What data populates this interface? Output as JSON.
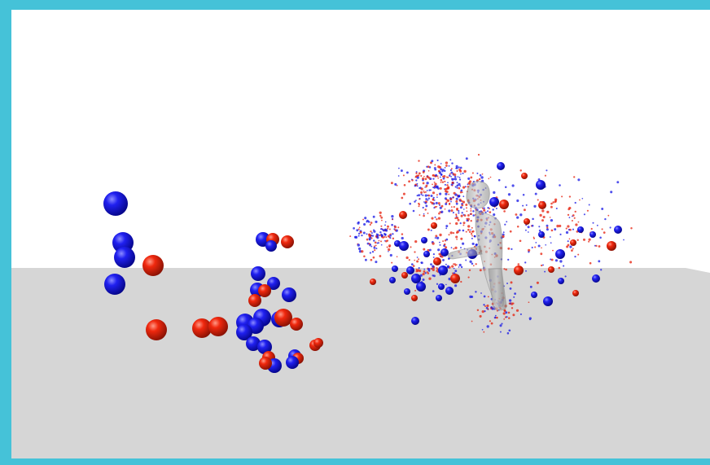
{
  "scene": {
    "colors": {
      "frame": "#45c2d8",
      "sky": "#ffffff",
      "ground": "#d6d6d6",
      "sphere_blue": "#1414e6",
      "sphere_red": "#e61e0a",
      "figure": "#9a9a9a"
    },
    "objects": {
      "ground_plane": "ground-plane",
      "sparse_spheres": "sphere-cluster",
      "dense_cloud": "point-cloud",
      "human": "human-figure"
    }
  }
}
